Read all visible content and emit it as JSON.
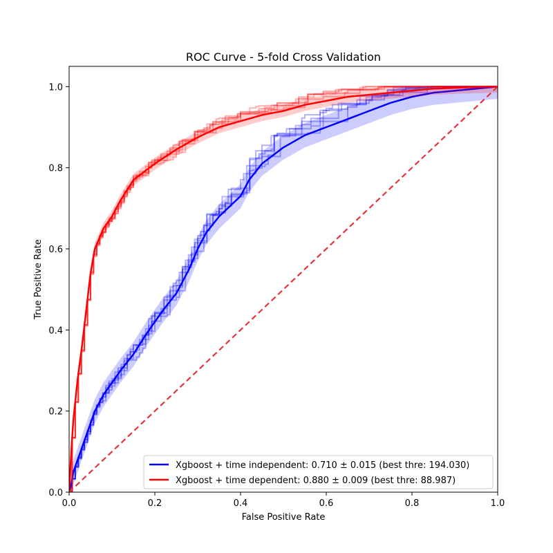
{
  "chart_data": {
    "type": "line",
    "title": "ROC Curve - 5-fold Cross Validation",
    "xlabel": "False Positive Rate",
    "ylabel": "True Positive Rate",
    "xlim": [
      0.0,
      1.0
    ],
    "ylim": [
      0.0,
      1.05
    ],
    "xticks": [
      "0.0",
      "0.2",
      "0.4",
      "0.6",
      "0.8",
      "1.0"
    ],
    "yticks": [
      "0.0",
      "0.2",
      "0.4",
      "0.6",
      "0.8",
      "1.0"
    ],
    "grid": false,
    "legend_position": "lower-right",
    "colors": {
      "time_independent": "#0000ff",
      "time_dependent": "#ff0000",
      "chance": "#e8323a"
    },
    "series": [
      {
        "name": "Xgboost + time independent: 0.710 ± 0.015 (best thre: 194.030)",
        "key": "time_independent",
        "mean_x": [
          0.0,
          0.005,
          0.01,
          0.02,
          0.03,
          0.04,
          0.05,
          0.06,
          0.08,
          0.1,
          0.12,
          0.15,
          0.18,
          0.2,
          0.22,
          0.25,
          0.28,
          0.3,
          0.32,
          0.35,
          0.38,
          0.4,
          0.42,
          0.45,
          0.5,
          0.55,
          0.6,
          0.65,
          0.7,
          0.75,
          0.8,
          0.85,
          0.9,
          0.95,
          1.0
        ],
        "mean_y": [
          0.0,
          0.02,
          0.05,
          0.08,
          0.11,
          0.14,
          0.17,
          0.2,
          0.24,
          0.27,
          0.3,
          0.34,
          0.39,
          0.42,
          0.45,
          0.49,
          0.55,
          0.6,
          0.64,
          0.68,
          0.71,
          0.73,
          0.77,
          0.81,
          0.85,
          0.88,
          0.9,
          0.92,
          0.94,
          0.96,
          0.975,
          0.985,
          0.99,
          0.995,
          1.0
        ],
        "std": 0.03,
        "fold_count": 5
      },
      {
        "name": "Xgboost + time dependent: 0.880 ± 0.009 (best thre: 88.987)",
        "key": "time_dependent",
        "mean_x": [
          0.0,
          0.005,
          0.01,
          0.02,
          0.03,
          0.04,
          0.05,
          0.06,
          0.08,
          0.1,
          0.12,
          0.15,
          0.2,
          0.25,
          0.3,
          0.35,
          0.4,
          0.45,
          0.5,
          0.55,
          0.6,
          0.65,
          0.7,
          0.75,
          0.8,
          0.85,
          0.9,
          0.95,
          1.0
        ],
        "mean_y": [
          0.0,
          0.1,
          0.18,
          0.28,
          0.36,
          0.45,
          0.54,
          0.6,
          0.65,
          0.68,
          0.72,
          0.77,
          0.81,
          0.845,
          0.875,
          0.9,
          0.915,
          0.93,
          0.94,
          0.955,
          0.965,
          0.975,
          0.98,
          0.985,
          0.99,
          0.995,
          0.997,
          0.999,
          1.0
        ],
        "std": 0.015,
        "fold_count": 5
      }
    ],
    "reference_line": {
      "x": [
        0.0,
        1.0
      ],
      "y": [
        0.0,
        1.0
      ],
      "style": "dashed"
    }
  }
}
